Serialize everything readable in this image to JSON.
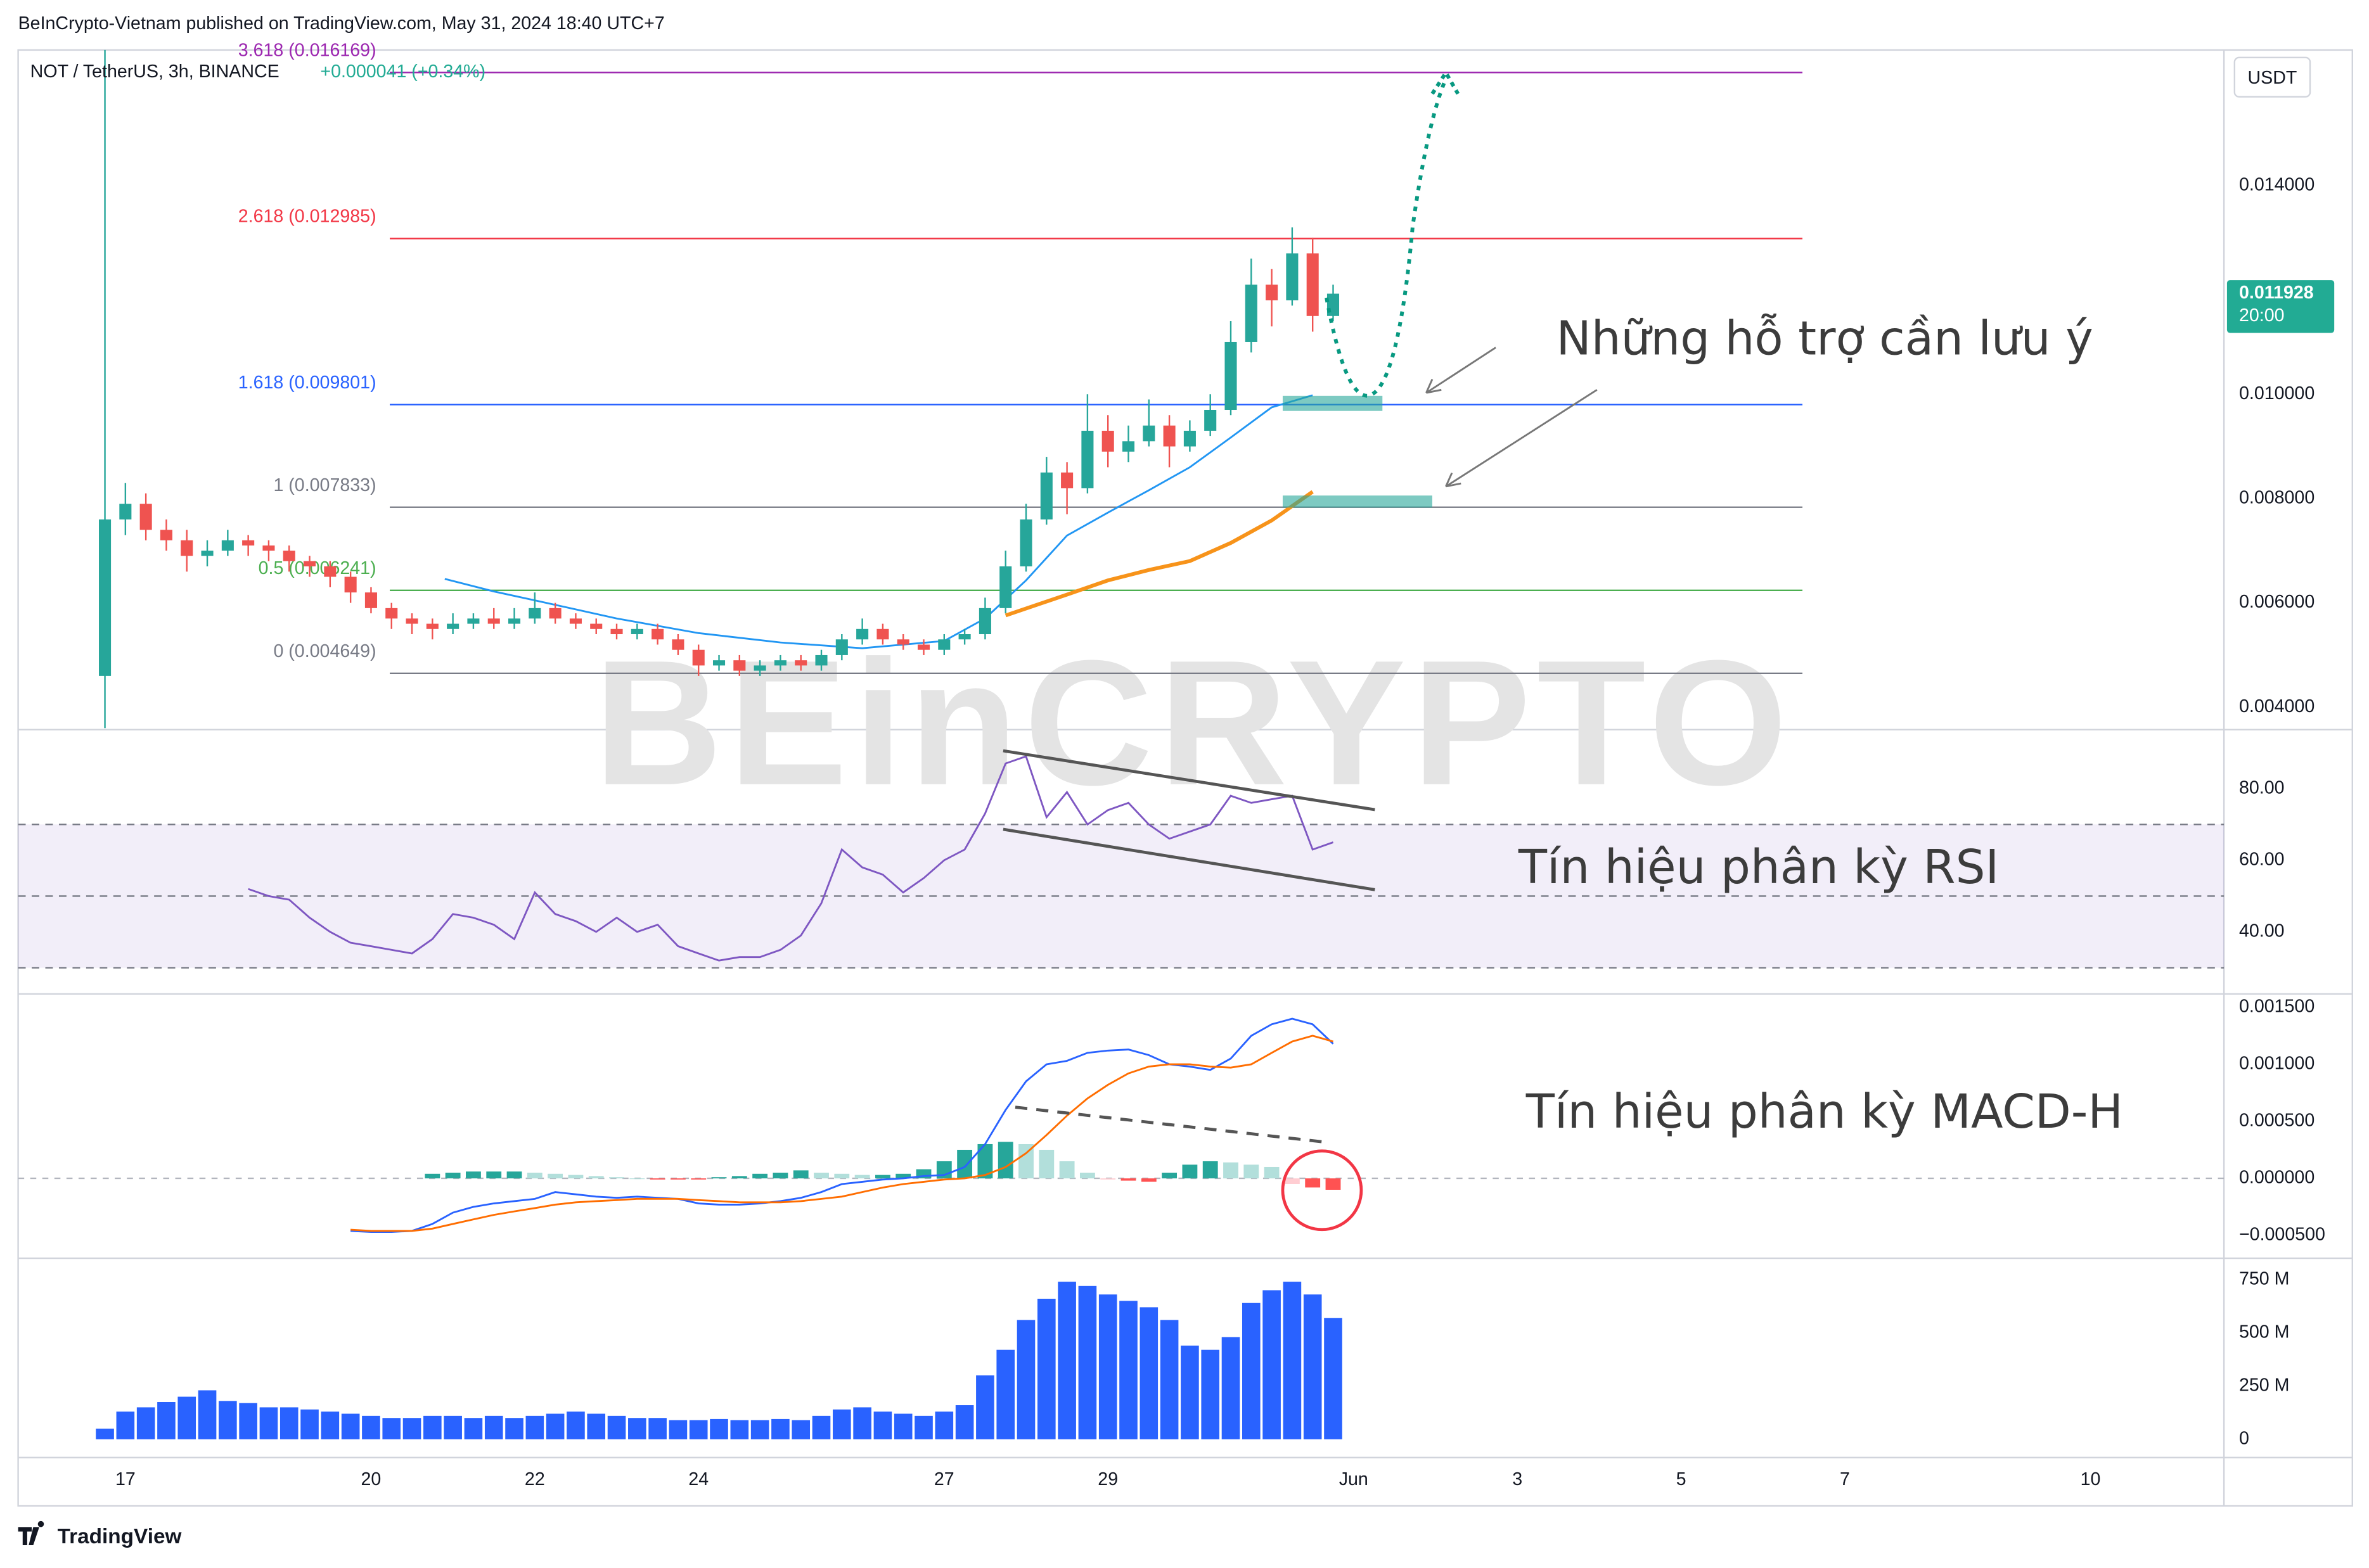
{
  "header": {
    "published": "BeInCrypto-Vietnam published on TradingView.com, May 31, 2024 18:40 UTC+7",
    "footer": "TradingView",
    "watermark": "BEinCRYPTO"
  },
  "chart_data": [
    {
      "type": "candlestick",
      "title": "NOT / TetherUS, 3h, BINANCE",
      "change": "+0.000041 (+0.34%)",
      "currency": "USDT",
      "up_color": "#26a69a",
      "down_color": "#ef5350",
      "xlim": [
        15.69,
        42.63
      ],
      "xticks": [
        17,
        20,
        22,
        24,
        27,
        29,
        {
          "value": 32,
          "label": "Jun"
        },
        {
          "value": 34,
          "label": "3"
        },
        {
          "value": 36,
          "label": "5"
        },
        {
          "value": 38,
          "label": "7"
        },
        {
          "value": 41,
          "label": "10"
        }
      ],
      "x": [
        16.75,
        17,
        17.25,
        17.5,
        17.75,
        18,
        18.25,
        18.5,
        18.75,
        19,
        19.25,
        19.5,
        19.75,
        20,
        20.25,
        20.5,
        20.75,
        21,
        21.25,
        21.5,
        21.75,
        22,
        22.25,
        22.5,
        22.75,
        23,
        23.25,
        23.5,
        23.75,
        24,
        24.25,
        24.5,
        24.75,
        25,
        25.25,
        25.5,
        25.75,
        26,
        26.25,
        26.5,
        26.75,
        27,
        27.25,
        27.5,
        27.75,
        28,
        28.25,
        28.5,
        28.75,
        29,
        29.25,
        29.5,
        29.75,
        30,
        30.25,
        30.5,
        30.75,
        31,
        31.25,
        31.5,
        31.75
      ],
      "ohlc": [
        [
          0.0046,
          0.0166,
          0.0036,
          0.0076
        ],
        [
          0.0076,
          0.0083,
          0.0073,
          0.0079
        ],
        [
          0.0079,
          0.0081,
          0.0072,
          0.0074
        ],
        [
          0.0074,
          0.0076,
          0.007,
          0.0072
        ],
        [
          0.0072,
          0.0074,
          0.0066,
          0.0069
        ],
        [
          0.0069,
          0.0072,
          0.0067,
          0.007
        ],
        [
          0.007,
          0.0074,
          0.0069,
          0.0072
        ],
        [
          0.0072,
          0.0073,
          0.0069,
          0.0071
        ],
        [
          0.0071,
          0.0072,
          0.0068,
          0.007
        ],
        [
          0.007,
          0.0071,
          0.0066,
          0.0068
        ],
        [
          0.0068,
          0.0069,
          0.0065,
          0.0067
        ],
        [
          0.0067,
          0.0068,
          0.0063,
          0.0065
        ],
        [
          0.0065,
          0.0066,
          0.006,
          0.0062
        ],
        [
          0.0062,
          0.0063,
          0.0058,
          0.0059
        ],
        [
          0.0059,
          0.006,
          0.0055,
          0.0057
        ],
        [
          0.0057,
          0.0058,
          0.0054,
          0.0056
        ],
        [
          0.0056,
          0.0057,
          0.0053,
          0.0055
        ],
        [
          0.0055,
          0.0058,
          0.0054,
          0.0056
        ],
        [
          0.0056,
          0.0058,
          0.0055,
          0.0057
        ],
        [
          0.0057,
          0.0059,
          0.0055,
          0.0056
        ],
        [
          0.0056,
          0.0059,
          0.0055,
          0.0057
        ],
        [
          0.0057,
          0.0062,
          0.0056,
          0.0059
        ],
        [
          0.0059,
          0.006,
          0.0056,
          0.0057
        ],
        [
          0.0057,
          0.0058,
          0.0055,
          0.0056
        ],
        [
          0.0056,
          0.0057,
          0.0054,
          0.0055
        ],
        [
          0.0055,
          0.0056,
          0.0053,
          0.0054
        ],
        [
          0.0054,
          0.0056,
          0.0053,
          0.0055
        ],
        [
          0.0055,
          0.0056,
          0.0052,
          0.0053
        ],
        [
          0.0053,
          0.0054,
          0.005,
          0.0051
        ],
        [
          0.0051,
          0.0052,
          0.0046,
          0.0048
        ],
        [
          0.0048,
          0.005,
          0.0047,
          0.0049
        ],
        [
          0.0049,
          0.005,
          0.0046,
          0.0047
        ],
        [
          0.0047,
          0.0049,
          0.0046,
          0.0048
        ],
        [
          0.0048,
          0.005,
          0.0047,
          0.0049
        ],
        [
          0.0049,
          0.005,
          0.0047,
          0.0048
        ],
        [
          0.0048,
          0.0051,
          0.0047,
          0.005
        ],
        [
          0.005,
          0.0054,
          0.0049,
          0.0053
        ],
        [
          0.0053,
          0.0057,
          0.0052,
          0.0055
        ],
        [
          0.0055,
          0.0056,
          0.0052,
          0.0053
        ],
        [
          0.0053,
          0.0054,
          0.0051,
          0.0052
        ],
        [
          0.0052,
          0.0053,
          0.005,
          0.0051
        ],
        [
          0.0051,
          0.0054,
          0.005,
          0.0053
        ],
        [
          0.0053,
          0.0055,
          0.0052,
          0.0054
        ],
        [
          0.0054,
          0.0061,
          0.0053,
          0.0059
        ],
        [
          0.0059,
          0.007,
          0.0058,
          0.0067
        ],
        [
          0.0067,
          0.0079,
          0.0066,
          0.0076
        ],
        [
          0.0076,
          0.0088,
          0.0075,
          0.0085
        ],
        [
          0.0085,
          0.0087,
          0.0077,
          0.0082
        ],
        [
          0.0082,
          0.01,
          0.0081,
          0.0093
        ],
        [
          0.0093,
          0.0096,
          0.0086,
          0.0089
        ],
        [
          0.0089,
          0.0094,
          0.0087,
          0.0091
        ],
        [
          0.0091,
          0.0099,
          0.009,
          0.0094
        ],
        [
          0.0094,
          0.0096,
          0.0086,
          0.009
        ],
        [
          0.009,
          0.0095,
          0.0089,
          0.0093
        ],
        [
          0.0093,
          0.01,
          0.0092,
          0.0097
        ],
        [
          0.0097,
          0.0114,
          0.0096,
          0.011
        ],
        [
          0.011,
          0.0126,
          0.0108,
          0.0121
        ],
        [
          0.0121,
          0.0124,
          0.0113,
          0.0118
        ],
        [
          0.0118,
          0.0132,
          0.0117,
          0.0127
        ],
        [
          0.0127,
          0.013,
          0.0112,
          0.0115
        ],
        [
          0.0115,
          0.0121,
          0.0114,
          0.011928
        ]
      ],
      "ylim": [
        0.00357,
        0.0166
      ],
      "yticks": [
        {
          "value": 0.014,
          "label": "0.014000"
        },
        {
          "value": 0.01,
          "label": "0.010000"
        },
        {
          "value": 0.008,
          "label": "0.008000"
        },
        {
          "value": 0.006,
          "label": "0.006000"
        },
        {
          "value": 0.004,
          "label": "0.004000"
        }
      ],
      "last_price": {
        "value": 0.011928,
        "label": "0.011928",
        "time": "20:00",
        "color": "#22ab94"
      },
      "levels": [
        {
          "value": 0.016169,
          "label": "3.618 (0.016169)",
          "color": "#9c27b0"
        },
        {
          "value": 0.012985,
          "label": "2.618 (0.012985)",
          "color": "#f23645"
        },
        {
          "value": 0.009801,
          "label": "1.618 (0.009801)",
          "color": "#2962ff"
        },
        {
          "value": 0.007833,
          "label": "1 (0.007833)",
          "color": "#787b86"
        },
        {
          "value": 0.006241,
          "label": "0.5 (0.006241)",
          "color": "#4caf50"
        },
        {
          "value": 0.004649,
          "label": "0 (0.004649)",
          "color": "#787b86"
        }
      ],
      "moving_averages": [
        {
          "color": "#2196f3",
          "x": [
            20.9,
            21.5,
            22,
            23,
            24,
            25,
            26,
            27,
            27.5,
            28,
            28.5,
            29,
            29.5,
            30,
            30.5,
            31,
            31.5
          ],
          "values": [
            0.00646,
            0.00622,
            0.00605,
            0.0057,
            0.00542,
            0.00524,
            0.00513,
            0.00527,
            0.0057,
            0.00643,
            0.00729,
            0.00773,
            0.00816,
            0.0086,
            0.00917,
            0.00975,
            0.00998
          ]
        },
        {
          "color": "#f7931a",
          "x": [
            27.75,
            28.5,
            29,
            29.5,
            30,
            30.5,
            31,
            31.5
          ],
          "values": [
            0.00576,
            0.00616,
            0.00643,
            0.00663,
            0.0068,
            0.00715,
            0.00758,
            0.00813
          ]
        }
      ],
      "annotation": "Những hỗ trợ cần lưu ý"
    },
    {
      "type": "line",
      "color": "#7e57c2",
      "band": [
        30,
        70
      ],
      "midline": 50,
      "ylim": [
        22.7,
        95.6
      ],
      "yticks": [
        {
          "value": 80,
          "label": "80.00"
        },
        {
          "value": 60,
          "label": "60.00"
        },
        {
          "value": 40,
          "label": "40.00"
        }
      ],
      "values": [
        null,
        null,
        null,
        null,
        null,
        null,
        null,
        52,
        50,
        49,
        44,
        40,
        37,
        36,
        35,
        34,
        38,
        45,
        44,
        42,
        38,
        51,
        45,
        43,
        40,
        44,
        40,
        42,
        36,
        34,
        32,
        33,
        33,
        35,
        39,
        48,
        63,
        58,
        56,
        51,
        55,
        60,
        63,
        73,
        87,
        89,
        72,
        79,
        70,
        74,
        76,
        70,
        66,
        68,
        70,
        78,
        76,
        77,
        78,
        63,
        65
      ],
      "annotation": "Tín hiệu phân kỳ RSI"
    },
    {
      "type": "macd",
      "ylim": [
        -0.0007,
        0.00159
      ],
      "yticks": [
        {
          "value": 0.0015,
          "label": "0.001500"
        },
        {
          "value": 0.001,
          "label": "0.001000"
        },
        {
          "value": 0.0005,
          "label": "0.000500"
        },
        {
          "value": 0,
          "label": "0.000000"
        },
        {
          "value": -0.0005,
          "label": "−0.000500"
        }
      ],
      "histogram": [
        null,
        null,
        null,
        null,
        null,
        null,
        null,
        null,
        null,
        null,
        null,
        null,
        null,
        null,
        null,
        null,
        4e-05,
        5e-05,
        6e-05,
        6e-05,
        6e-05,
        5e-05,
        4e-05,
        3e-05,
        2e-05,
        1e-05,
        0,
        -1e-05,
        -1e-05,
        -1e-05,
        1e-05,
        2e-05,
        4e-05,
        5e-05,
        7e-05,
        5e-05,
        4e-05,
        3e-05,
        3e-05,
        4e-05,
        8e-05,
        0.00015,
        0.00025,
        0.0003,
        0.00032,
        0.0003,
        0.00025,
        0.00015,
        5e-05,
        -1e-05,
        -2e-05,
        -3e-05,
        5e-05,
        0.00012,
        0.00015,
        0.00014,
        0.00012,
        0.0001,
        -5e-05,
        -8e-05,
        -0.0001
      ],
      "histogram_colors": [
        "#26a69a",
        "#b2dfdb",
        "#ff5252",
        "#ffcdd2"
      ],
      "series": [
        {
          "color": "#2962ff",
          "values": [
            null,
            null,
            null,
            null,
            null,
            null,
            null,
            null,
            null,
            null,
            null,
            null,
            -0.00046,
            -0.00047,
            -0.00047,
            -0.00046,
            -0.0004,
            -0.0003,
            -0.00025,
            -0.00022,
            -0.0002,
            -0.00018,
            -0.00012,
            -0.00014,
            -0.00016,
            -0.00017,
            -0.00016,
            -0.00017,
            -0.00018,
            -0.00022,
            -0.00023,
            -0.00023,
            -0.00022,
            -0.0002,
            -0.00017,
            -0.00012,
            -5e-05,
            -3e-05,
            -1e-05,
            0,
            2e-05,
            3e-05,
            0.0001,
            0.0003,
            0.0006,
            0.00085,
            0.001,
            0.00103,
            0.0011,
            0.00112,
            0.00113,
            0.00108,
            0.001,
            0.00098,
            0.00095,
            0.00105,
            0.00125,
            0.00135,
            0.0014,
            0.00135,
            0.00118
          ]
        },
        {
          "color": "#ff6d00",
          "values": [
            null,
            null,
            null,
            null,
            null,
            null,
            null,
            null,
            null,
            null,
            null,
            null,
            -0.00045,
            -0.00046,
            -0.00046,
            -0.00046,
            -0.00044,
            -0.0004,
            -0.00036,
            -0.00032,
            -0.00029,
            -0.00026,
            -0.00023,
            -0.00021,
            -0.0002,
            -0.00019,
            -0.00018,
            -0.00018,
            -0.00018,
            -0.00019,
            -0.0002,
            -0.00021,
            -0.00021,
            -0.00021,
            -0.0002,
            -0.00018,
            -0.00016,
            -0.00012,
            -8e-05,
            -5e-05,
            -3e-05,
            -1e-05,
            0,
            3e-05,
            0.0001,
            0.00022,
            0.00038,
            0.00055,
            0.0007,
            0.00082,
            0.00092,
            0.00098,
            0.001,
            0.001,
            0.00098,
            0.00097,
            0.001,
            0.0011,
            0.0012,
            0.00125,
            0.0012
          ]
        }
      ],
      "annotation": "Tín hiệu phân kỳ MACD-H"
    },
    {
      "type": "bar",
      "color": "#2962ff",
      "ylim": [
        -86000000,
        836000000
      ],
      "yticks": [
        {
          "value": 750000000,
          "label": "750 M"
        },
        {
          "value": 500000000,
          "label": "500 M"
        },
        {
          "value": 250000000,
          "label": "250 M"
        },
        0
      ],
      "values": [
        50000000,
        130000000,
        150000000,
        175000000,
        200000000,
        230000000,
        180000000,
        170000000,
        150000000,
        150000000,
        140000000,
        130000000,
        120000000,
        110000000,
        100000000,
        100000000,
        110000000,
        110000000,
        100000000,
        110000000,
        100000000,
        110000000,
        120000000,
        130000000,
        120000000,
        110000000,
        100000000,
        100000000,
        90000000,
        90000000,
        95000000,
        90000000,
        90000000,
        95000000,
        90000000,
        110000000,
        140000000,
        150000000,
        130000000,
        120000000,
        110000000,
        130000000,
        160000000,
        300000000,
        420000000,
        560000000,
        660000000,
        740000000,
        720000000,
        680000000,
        650000000,
        620000000,
        560000000,
        440000000,
        420000000,
        480000000,
        640000000,
        700000000,
        740000000,
        680000000,
        570000000
      ]
    }
  ]
}
